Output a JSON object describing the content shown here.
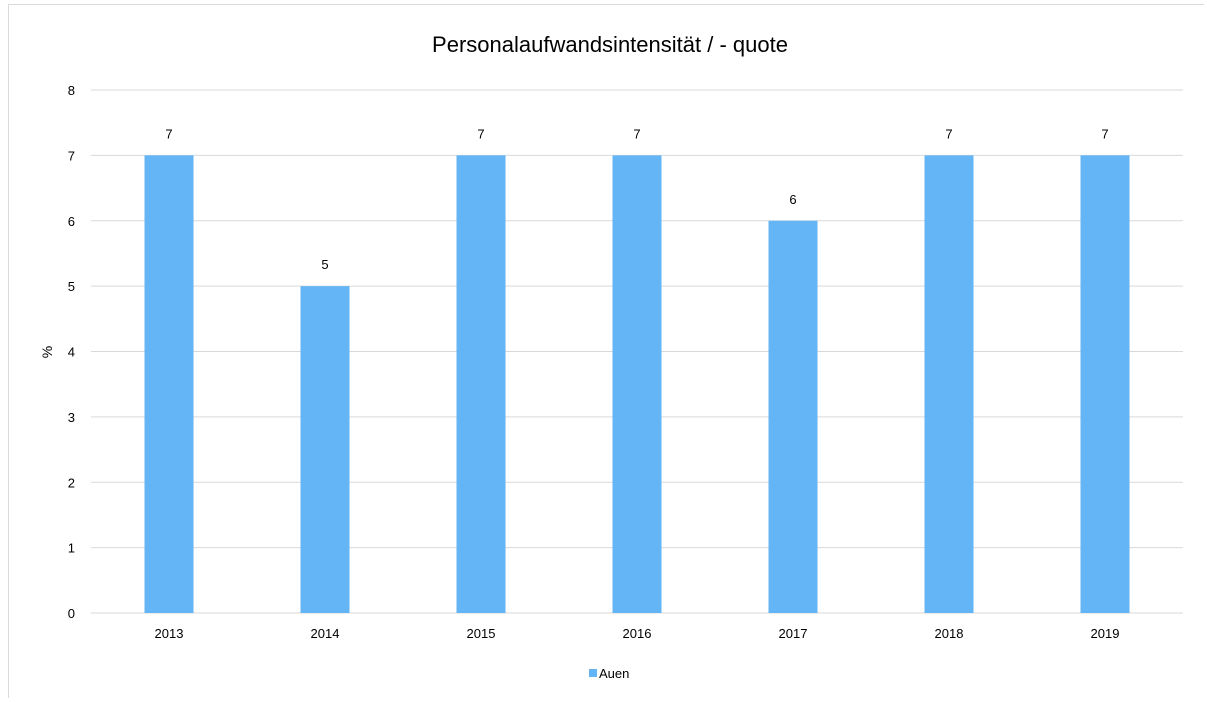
{
  "chart_data": {
    "type": "bar",
    "title": "Personalaufwandsintensität / - quote",
    "xlabel": "",
    "ylabel": "%",
    "categories": [
      "2013",
      "2014",
      "2015",
      "2016",
      "2017",
      "2018",
      "2019"
    ],
    "series": [
      {
        "name": "Auen",
        "values": [
          7,
          5,
          7,
          7,
          6,
          7,
          7
        ],
        "color": "#63b5f6"
      }
    ],
    "ylim": [
      0,
      8
    ],
    "yticks": [
      "0",
      "1",
      "2",
      "3",
      "4",
      "5",
      "6",
      "7",
      "8"
    ],
    "data_labels": [
      "7",
      "5",
      "7",
      "7",
      "6",
      "7",
      "7"
    ],
    "grid": true,
    "legend_position": "bottom",
    "gridline_color": "#d9d9d9"
  }
}
